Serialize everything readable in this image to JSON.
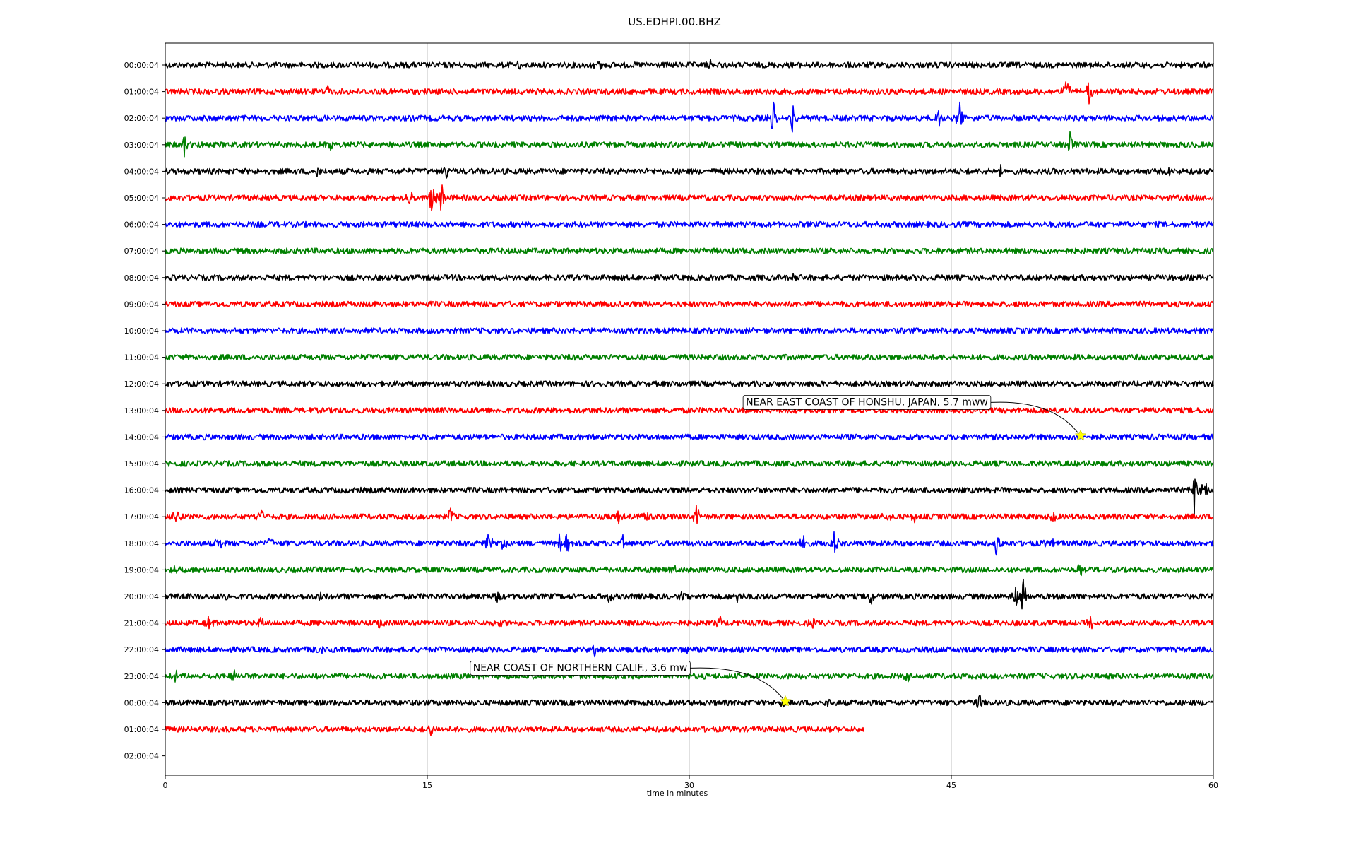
{
  "chart_data": {
    "type": "line",
    "title": "US.EDHPI.00.BHZ",
    "xlabel": "time in minutes",
    "ylabel": "",
    "xlim": [
      0,
      60
    ],
    "x_ticks": [
      "0",
      "15",
      "30",
      "45",
      "60"
    ],
    "grid": "vertical",
    "trace_colors": [
      "#000000",
      "#ff0000",
      "#0000ff",
      "#008000"
    ],
    "rows": [
      {
        "label": "00:00:04",
        "color": "#000000",
        "end": 60,
        "events": [
          [
            20.3,
            0.25
          ],
          [
            24.8,
            0.5
          ],
          [
            31.2,
            0.3
          ]
        ]
      },
      {
        "label": "01:00:04",
        "color": "#ff0000",
        "end": 60,
        "events": [
          [
            9.3,
            0.25
          ],
          [
            51.6,
            0.8
          ],
          [
            52.9,
            0.9
          ]
        ]
      },
      {
        "label": "02:00:04",
        "color": "#0000ff",
        "end": 60,
        "events": [
          [
            34.8,
            0.9
          ],
          [
            35.9,
            0.6
          ],
          [
            44.3,
            0.6
          ],
          [
            45.5,
            0.8
          ]
        ]
      },
      {
        "label": "03:00:04",
        "color": "#008000",
        "end": 60,
        "events": [
          [
            1.1,
            0.6
          ],
          [
            1.8,
            0.5
          ],
          [
            9.5,
            0.25
          ],
          [
            51.8,
            0.5
          ]
        ]
      },
      {
        "label": "04:00:04",
        "color": "#000000",
        "end": 60,
        "events": [
          [
            8.7,
            0.2
          ],
          [
            16.1,
            0.3
          ],
          [
            47.8,
            0.5
          ],
          [
            57.5,
            0.2
          ]
        ]
      },
      {
        "label": "05:00:04",
        "color": "#ff0000",
        "end": 60,
        "events": [
          [
            14.0,
            0.5
          ],
          [
            15.3,
            1.3
          ],
          [
            15.8,
            0.8
          ]
        ]
      },
      {
        "label": "06:00:04",
        "color": "#0000ff",
        "end": 60,
        "events": []
      },
      {
        "label": "07:00:04",
        "color": "#008000",
        "end": 60,
        "events": []
      },
      {
        "label": "08:00:04",
        "color": "#000000",
        "end": 60,
        "events": [
          [
            36.0,
            0.15
          ]
        ]
      },
      {
        "label": "09:00:04",
        "color": "#ff0000",
        "end": 60,
        "events": []
      },
      {
        "label": "10:00:04",
        "color": "#0000ff",
        "end": 60,
        "events": [
          [
            59.0,
            0.15
          ]
        ]
      },
      {
        "label": "11:00:04",
        "color": "#008000",
        "end": 60,
        "events": []
      },
      {
        "label": "12:00:04",
        "color": "#000000",
        "end": 60,
        "events": []
      },
      {
        "label": "13:00:04",
        "color": "#ff0000",
        "end": 60,
        "events": []
      },
      {
        "label": "14:00:04",
        "color": "#0000ff",
        "end": 60,
        "events": []
      },
      {
        "label": "15:00:04",
        "color": "#008000",
        "end": 60,
        "events": []
      },
      {
        "label": "16:00:04",
        "color": "#000000",
        "end": 60,
        "events": [
          [
            58.9,
            1.1
          ],
          [
            59.5,
            0.6
          ]
        ]
      },
      {
        "label": "17:00:04",
        "color": "#ff0000",
        "end": 60,
        "events": [
          [
            0.6,
            0.4
          ],
          [
            5.5,
            0.5
          ],
          [
            16.3,
            0.5
          ],
          [
            26.0,
            0.4
          ],
          [
            27.5,
            0.4
          ],
          [
            30.4,
            0.6
          ],
          [
            41.3,
            0.3
          ],
          [
            42.9,
            0.4
          ],
          [
            50.8,
            0.3
          ]
        ]
      },
      {
        "label": "18:00:04",
        "color": "#0000ff",
        "end": 60,
        "events": [
          [
            3.1,
            0.4
          ],
          [
            6.0,
            0.3
          ],
          [
            18.5,
            0.7
          ],
          [
            19.4,
            0.5
          ],
          [
            22.6,
            0.6
          ],
          [
            23.0,
            0.5
          ],
          [
            26.2,
            0.3
          ],
          [
            36.5,
            0.4
          ],
          [
            38.3,
            0.6
          ],
          [
            47.6,
            0.6
          ],
          [
            50.6,
            0.5
          ]
        ]
      },
      {
        "label": "19:00:04",
        "color": "#008000",
        "end": 60,
        "events": [
          [
            0.6,
            0.25
          ],
          [
            29.1,
            0.3
          ],
          [
            52.4,
            0.5
          ]
        ]
      },
      {
        "label": "20:00:04",
        "color": "#000000",
        "end": 60,
        "events": [
          [
            3.5,
            0.4
          ],
          [
            8.9,
            0.3
          ],
          [
            19.0,
            0.5
          ],
          [
            25.4,
            0.4
          ],
          [
            29.6,
            0.4
          ],
          [
            32.8,
            0.3
          ],
          [
            40.4,
            0.5
          ],
          [
            48.7,
            0.6
          ],
          [
            49.1,
            1.0
          ]
        ]
      },
      {
        "label": "21:00:04",
        "color": "#ff0000",
        "end": 60,
        "events": [
          [
            2.5,
            0.3
          ],
          [
            5.5,
            0.3
          ],
          [
            12.2,
            0.3
          ],
          [
            19.0,
            0.3
          ],
          [
            31.8,
            0.3
          ],
          [
            37.0,
            0.25
          ],
          [
            53.0,
            0.25
          ]
        ]
      },
      {
        "label": "22:00:04",
        "color": "#0000ff",
        "end": 60,
        "events": [
          [
            8.8,
            0.4
          ],
          [
            24.6,
            0.3
          ],
          [
            29.9,
            0.25
          ]
        ]
      },
      {
        "label": "23:00:04",
        "color": "#008000",
        "end": 60,
        "events": [
          [
            0.6,
            0.3
          ],
          [
            4.0,
            0.3
          ],
          [
            42.5,
            0.2
          ]
        ]
      },
      {
        "label": "00:00:04",
        "color": "#000000",
        "end": 60,
        "events": [
          [
            35.4,
            0.3
          ],
          [
            38.0,
            0.3
          ],
          [
            46.6,
            0.5
          ]
        ]
      },
      {
        "label": "01:00:04",
        "color": "#ff0000",
        "end": 40,
        "events": [
          [
            15.2,
            0.4
          ]
        ]
      },
      {
        "label": "02:00:04",
        "color": "#008000",
        "end": 0,
        "events": []
      }
    ],
    "annotations": [
      {
        "text": "NEAR EAST COAST OF HONSHU, JAPAN, 5.7 mww",
        "row": 14,
        "x": 52.4,
        "marker": "star",
        "marker_color": "#ffff00"
      },
      {
        "text": "NEAR COAST OF NORTHERN CALIF., 3.6 mw",
        "row": 24,
        "x": 35.5,
        "marker": "star",
        "marker_color": "#ffff00"
      }
    ]
  }
}
